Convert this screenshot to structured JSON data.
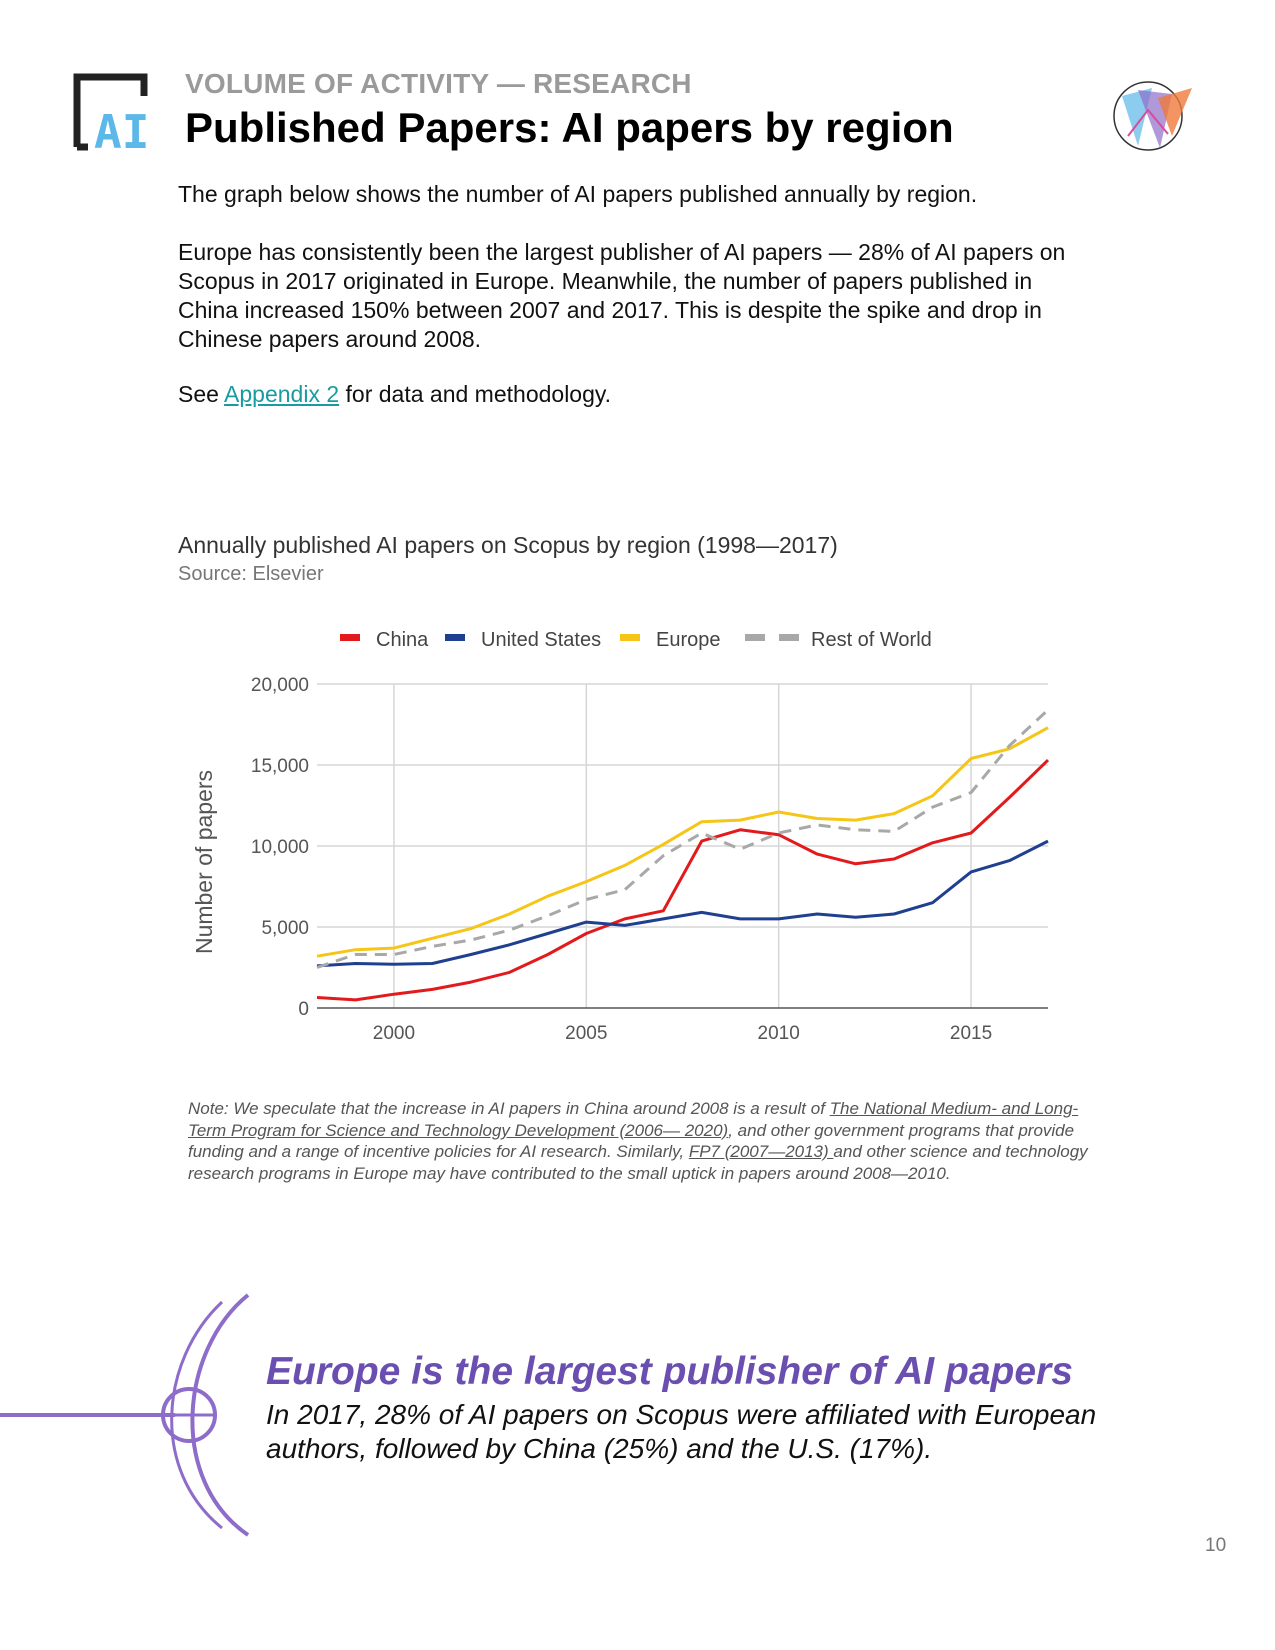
{
  "header": {
    "kicker": "VOLUME OF ACTIVITY — RESEARCH",
    "title": "Published Papers: AI papers by region",
    "logo_text": "AI"
  },
  "intro": {
    "p1": "The graph below shows the number of AI papers published annually by region.",
    "p2": "Europe has consistently been the largest publisher of AI papers — 28% of AI papers on Scopus in 2017 originated in Europe. Meanwhile, the number of papers published in China increased 150% between 2007 and 2017. This is despite the spike and drop in Chinese papers around 2008.",
    "p3_before": "See ",
    "p3_link": "Appendix 2",
    "p3_after": " for data and methodology."
  },
  "chart_data": {
    "type": "line",
    "title": "Annually published AI papers on Scopus by region (1998—2017)",
    "subtitle": "Source: Elsevier",
    "ylabel": "Number of papers",
    "xlabel": "",
    "ylim": [
      0,
      20000
    ],
    "xlim": [
      1998,
      2017
    ],
    "yticks": [
      0,
      5000,
      10000,
      15000,
      20000
    ],
    "ytick_labels": [
      "0",
      "5,000",
      "10,000",
      "15,000",
      "20,000"
    ],
    "xticks": [
      2000,
      2005,
      2010,
      2015
    ],
    "xtick_labels": [
      "2000",
      "2005",
      "2010",
      "2015"
    ],
    "grid": true,
    "legend_position": "top",
    "x": [
      1998,
      1999,
      2000,
      2001,
      2002,
      2003,
      2004,
      2005,
      2006,
      2007,
      2008,
      2009,
      2010,
      2011,
      2012,
      2013,
      2014,
      2015,
      2016,
      2017
    ],
    "series": [
      {
        "name": "China",
        "color": "#e31a1c",
        "dash": false,
        "values": [
          650,
          500,
          850,
          1150,
          1600,
          2200,
          3300,
          4600,
          5500,
          6000,
          10300,
          11000,
          10700,
          9500,
          8900,
          9200,
          10200,
          10800,
          13000,
          15300
        ]
      },
      {
        "name": "United States",
        "color": "#1f3f8f",
        "dash": false,
        "values": [
          2600,
          2750,
          2700,
          2750,
          3300,
          3900,
          4600,
          5300,
          5100,
          5500,
          5900,
          5500,
          5500,
          5800,
          5600,
          5800,
          6500,
          8400,
          9100,
          10300
        ]
      },
      {
        "name": "Europe",
        "color": "#f5c518",
        "dash": false,
        "values": [
          3200,
          3600,
          3700,
          4300,
          4900,
          5800,
          6900,
          7800,
          8800,
          10100,
          11500,
          11600,
          12100,
          11700,
          11600,
          12000,
          13100,
          15400,
          16000,
          17300
        ]
      },
      {
        "name": "Rest of World",
        "color": "#a8a8a8",
        "dash": true,
        "values": [
          2500,
          3300,
          3300,
          3800,
          4200,
          4800,
          5700,
          6700,
          7300,
          9400,
          10800,
          9800,
          10800,
          11300,
          11000,
          10900,
          12400,
          13300,
          16200,
          18400
        ]
      }
    ]
  },
  "note": {
    "prefix": "Note: We speculate that the increase in AI papers in China around 2008 is a result of ",
    "link1": "The National Medium- and Long-Term Program for Science and Technology Development (2006— 2020)",
    "middle": ", and other government programs that provide funding and a range of incentive policies for AI research. Similarly, ",
    "link2": "FP7 (2007—2013) ",
    "suffix": "and other science and technology research programs in Europe may have contributed to the small uptick in papers around 2008—2010."
  },
  "callout": {
    "title": "Europe is the largest publisher of AI papers",
    "body": "In 2017, 28% of AI papers on Scopus were affiliated with European authors, followed by China (25%) and the U.S. (17%)."
  },
  "footer": {
    "page_number": "10"
  },
  "colors": {
    "accent_purple": "#6b4fb0",
    "link_teal": "#1a9ba0",
    "logo_blue": "#5bb8e8"
  }
}
